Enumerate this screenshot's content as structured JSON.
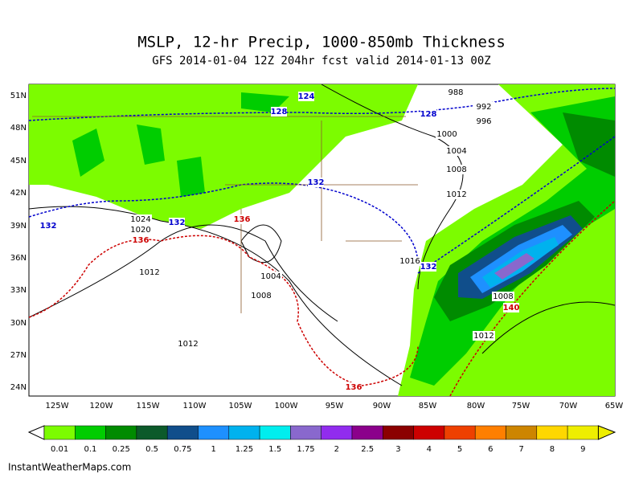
{
  "header": {
    "title": "MSLP, 12-hr Precip, 1000-850mb Thickness",
    "subtitle": "GFS 2014-01-04 12Z 204hr fcst valid 2014-01-13 00Z"
  },
  "map": {
    "lat_labels": [
      "51N",
      "48N",
      "45N",
      "42N",
      "39N",
      "36N",
      "33N",
      "30N",
      "27N",
      "24N"
    ],
    "lon_labels": [
      "125W",
      "120W",
      "115W",
      "110W",
      "105W",
      "100W",
      "95W",
      "90W",
      "85W",
      "80W",
      "75W",
      "70W",
      "65W"
    ],
    "isobar_labels": [
      "988",
      "992",
      "996",
      "1000",
      "1004",
      "1008",
      "1012",
      "1024",
      "1020",
      "1012",
      "1004",
      "1008",
      "1016",
      "1008",
      "1012",
      "1012"
    ],
    "thickness_labels_blue": [
      "124",
      "128",
      "128",
      "132",
      "132",
      "132",
      "132"
    ],
    "thickness_labels_red": [
      "136",
      "136",
      "136",
      "140"
    ]
  },
  "colorbar": {
    "labels": [
      "0.01",
      "0.1",
      "0.25",
      "0.5",
      "0.75",
      "1",
      "1.25",
      "1.5",
      "1.75",
      "2",
      "2.5",
      "3",
      "4",
      "5",
      "6",
      "7",
      "8",
      "9"
    ],
    "colors": [
      "#7cfc00",
      "#00cd00",
      "#008b00",
      "#0c5a2a",
      "#104e8b",
      "#1e90ff",
      "#00b2ee",
      "#00eeee",
      "#8968cd",
      "#912cee",
      "#8b008b",
      "#8b0000",
      "#cd0000",
      "#ee4000",
      "#ff7f00",
      "#cd8500",
      "#ffd700",
      "#eeee00"
    ]
  },
  "footer": {
    "credit": "InstantWeatherMaps.com"
  }
}
